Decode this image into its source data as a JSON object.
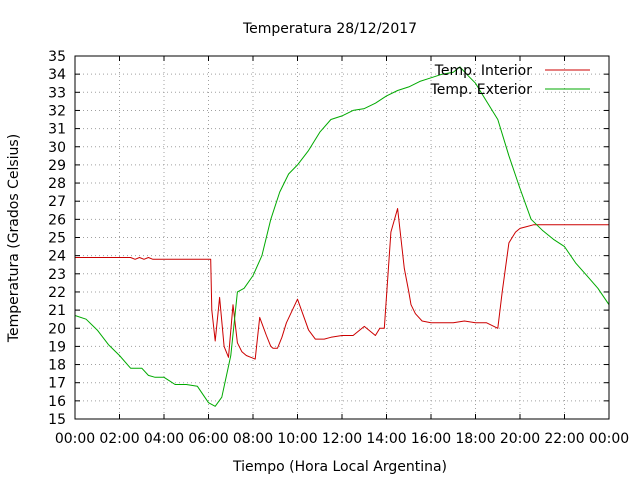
{
  "chart_data": {
    "type": "line",
    "title": "Temperatura 28/12/2017",
    "xlabel": "Tiempo (Hora Local Argentina)",
    "ylabel": "Temperatura (Grados Celsius)",
    "xlim": [
      0,
      24
    ],
    "ylim": [
      15,
      35
    ],
    "x_ticks": [
      0,
      2,
      4,
      6,
      8,
      10,
      12,
      14,
      16,
      18,
      20,
      22,
      24
    ],
    "x_tick_labels": [
      "00:00",
      "02:00",
      "04:00",
      "06:00",
      "08:00",
      "10:00",
      "12:00",
      "14:00",
      "16:00",
      "18:00",
      "20:00",
      "22:00",
      "00:00"
    ],
    "y_ticks": [
      15,
      16,
      17,
      18,
      19,
      20,
      21,
      22,
      23,
      24,
      25,
      26,
      27,
      28,
      29,
      30,
      31,
      32,
      33,
      34,
      35
    ],
    "grid": true,
    "legend_position": "top-right",
    "colors": {
      "interior": "#cc0000",
      "exterior": "#00aa00"
    },
    "series": [
      {
        "name": "Temp. Interior",
        "color": "#cc0000",
        "x": [
          0,
          2.5,
          2.7,
          2.9,
          3.1,
          3.3,
          3.5,
          4.0,
          5.0,
          6.1,
          6.15,
          6.3,
          6.5,
          6.7,
          6.9,
          7.1,
          7.3,
          7.5,
          7.7,
          7.9,
          8.1,
          8.3,
          8.6,
          8.8,
          8.9,
          9.1,
          9.3,
          9.5,
          10.0,
          10.5,
          10.8,
          11.0,
          11.2,
          11.5,
          12.0,
          12.5,
          13.0,
          13.5,
          13.7,
          13.9,
          14.2,
          14.5,
          14.8,
          15.0,
          15.1,
          15.3,
          15.6,
          16.0,
          16.5,
          17.0,
          17.5,
          18.0,
          18.5,
          19.0,
          19.2,
          19.5,
          19.8,
          20.0,
          20.3,
          20.6,
          21.0,
          22.0,
          24.0
        ],
        "values": [
          23.9,
          23.9,
          23.8,
          23.9,
          23.8,
          23.9,
          23.8,
          23.8,
          23.8,
          23.8,
          21.0,
          19.3,
          21.7,
          19.0,
          18.4,
          21.3,
          19.2,
          18.7,
          18.5,
          18.4,
          18.3,
          20.6,
          19.6,
          19.0,
          18.9,
          18.9,
          19.5,
          20.3,
          21.6,
          19.9,
          19.4,
          19.4,
          19.4,
          19.5,
          19.6,
          19.6,
          20.1,
          19.6,
          20.0,
          20.0,
          25.3,
          26.6,
          23.3,
          22.0,
          21.3,
          20.8,
          20.4,
          20.3,
          20.3,
          20.3,
          20.4,
          20.3,
          20.3,
          20.0,
          22.0,
          24.7,
          25.3,
          25.5,
          25.6,
          25.7,
          25.7,
          25.7,
          25.7
        ]
      },
      {
        "name": "Temp. Exterior",
        "color": "#00aa00",
        "x": [
          0,
          0.5,
          1.0,
          1.5,
          2.0,
          2.5,
          3.0,
          3.3,
          3.6,
          4.0,
          4.5,
          5.0,
          5.5,
          6.0,
          6.3,
          6.6,
          7.0,
          7.3,
          7.6,
          8.0,
          8.4,
          8.8,
          9.2,
          9.6,
          10.0,
          10.5,
          11.0,
          11.5,
          12.0,
          12.5,
          13.0,
          13.5,
          14.0,
          14.5,
          15.0,
          15.5,
          16.0,
          16.5,
          17.0,
          17.3,
          17.6,
          18.0,
          18.5,
          19.0,
          19.5,
          20.0,
          20.5,
          21.0,
          21.5,
          22.0,
          22.5,
          23.0,
          23.5,
          24.0
        ],
        "values": [
          20.7,
          20.5,
          19.9,
          19.1,
          18.5,
          17.8,
          17.8,
          17.4,
          17.3,
          17.3,
          16.9,
          16.9,
          16.8,
          15.9,
          15.7,
          16.2,
          18.5,
          22.0,
          22.2,
          22.9,
          24.0,
          26.0,
          27.5,
          28.5,
          29.0,
          29.8,
          30.8,
          31.5,
          31.7,
          32.0,
          32.1,
          32.4,
          32.8,
          33.1,
          33.3,
          33.6,
          33.8,
          34.0,
          34.1,
          34.4,
          34.0,
          33.5,
          32.5,
          31.5,
          29.5,
          27.7,
          26.0,
          25.4,
          24.9,
          24.5,
          23.6,
          22.9,
          22.2,
          21.3
        ]
      }
    ]
  }
}
